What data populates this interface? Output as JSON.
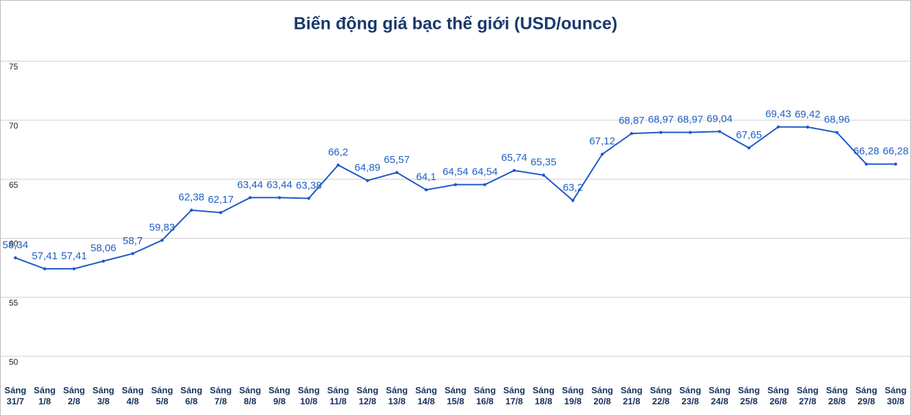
{
  "chart_data": {
    "type": "line",
    "title": "Biến động giá bạc thế giới (USD/ounce)",
    "categories": [
      "Sáng\n31/7",
      "Sáng\n1/8",
      "Sáng\n2/8",
      "Sáng\n3/8",
      "Sáng\n4/8",
      "Sáng\n5/8",
      "Sáng\n6/8",
      "Sáng\n7/8",
      "Sáng\n8/8",
      "Sáng\n9/8",
      "Sáng\n10/8",
      "Sáng\n11/8",
      "Sáng\n12/8",
      "Sáng\n13/8",
      "Sáng\n14/8",
      "Sáng\n15/8",
      "Sáng\n16/8",
      "Sáng\n17/8",
      "Sáng\n18/8",
      "Sáng\n19/8",
      "Sáng\n20/8",
      "Sáng\n21/8",
      "Sáng\n22/8",
      "Sáng\n23/8",
      "Sáng\n24/8",
      "Sáng\n25/8",
      "Sáng\n26/8",
      "Sáng\n27/8",
      "Sáng\n28/8",
      "Sáng\n29/8",
      "Sáng\n30/8"
    ],
    "values": [
      58.34,
      57.41,
      57.41,
      58.06,
      58.7,
      59.83,
      62.38,
      62.17,
      63.44,
      63.44,
      63.38,
      66.2,
      64.89,
      65.57,
      64.1,
      64.54,
      64.54,
      65.74,
      65.35,
      63.2,
      67.12,
      68.87,
      68.97,
      68.97,
      69.04,
      67.65,
      69.43,
      69.42,
      68.96,
      66.28,
      66.28
    ],
    "value_labels": [
      "58,34",
      "57,41",
      "57,41",
      "58,06",
      "58,7",
      "59,83",
      "62,38",
      "62,17",
      "63,44",
      "63,44",
      "63,38",
      "66,2",
      "64,89",
      "65,57",
      "64,1",
      "64,54",
      "64,54",
      "65,74",
      "65,35",
      "63,2",
      "67,12",
      "68,87",
      "68,97",
      "68,97",
      "69,04",
      "67,65",
      "69,43",
      "69,42",
      "68,96",
      "66,28",
      "66,28"
    ],
    "color": "#1c57c9",
    "ylim": [
      48.2,
      80
    ],
    "yticks": [
      50,
      55,
      60,
      65,
      70,
      75
    ],
    "grid": true
  }
}
